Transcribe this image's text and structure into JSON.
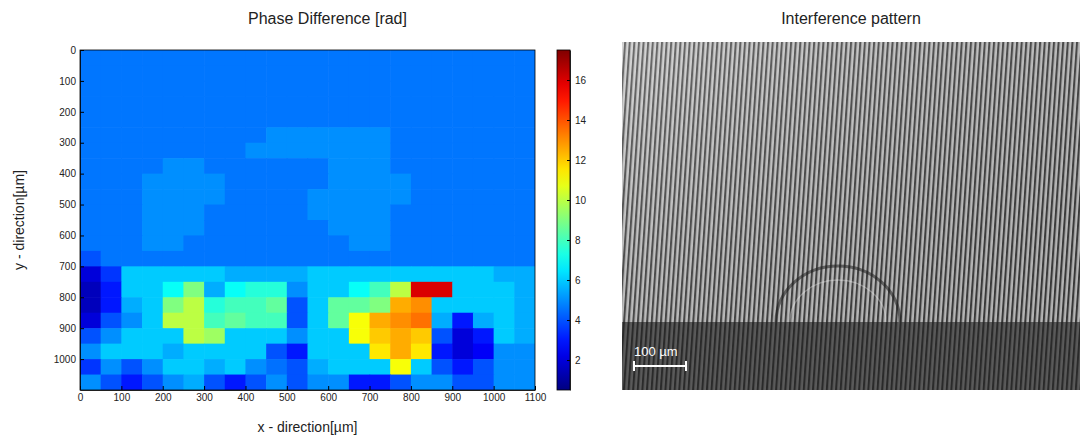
{
  "chart_data": {
    "type": "heatmap",
    "title": "Phase Difference [rad]",
    "x_label": "x - direction[µm]",
    "y_label": "y - direction[µm]",
    "x": [
      25,
      75,
      125,
      175,
      225,
      275,
      325,
      375,
      425,
      475,
      525,
      575,
      625,
      675,
      725,
      775,
      825,
      875,
      925,
      975,
      1025,
      1075
    ],
    "y": [
      25,
      75,
      125,
      175,
      225,
      275,
      325,
      375,
      425,
      475,
      525,
      575,
      625,
      675,
      725,
      775,
      825,
      875,
      925,
      975,
      1025,
      1075
    ],
    "xlim": [
      0,
      1100
    ],
    "ylim": [
      1100,
      0
    ],
    "xticks": [
      0,
      100,
      200,
      300,
      400,
      500,
      600,
      700,
      800,
      900,
      1000,
      1100
    ],
    "yticks": [
      0,
      100,
      200,
      300,
      400,
      500,
      600,
      700,
      800,
      900,
      1000
    ],
    "cells": [
      [
        4.6,
        4.6,
        4.6,
        4.6,
        4.6,
        4.6,
        4.6,
        4.6,
        4.6,
        4.6,
        4.6,
        4.6,
        4.6,
        4.6,
        4.6,
        4.6,
        4.6,
        4.6,
        4.6,
        4.6,
        4.6,
        4.6
      ],
      [
        4.6,
        4.6,
        4.6,
        4.6,
        4.6,
        4.6,
        4.6,
        4.6,
        4.6,
        4.6,
        4.6,
        4.6,
        4.6,
        4.6,
        4.6,
        4.6,
        4.6,
        4.6,
        4.6,
        4.6,
        4.6,
        4.6
      ],
      [
        4.6,
        4.6,
        4.6,
        4.6,
        4.6,
        4.6,
        4.6,
        4.6,
        4.6,
        4.6,
        4.6,
        4.6,
        4.6,
        4.6,
        4.6,
        4.6,
        4.6,
        4.6,
        4.6,
        4.6,
        4.6,
        4.6
      ],
      [
        4.6,
        4.6,
        4.6,
        4.6,
        4.6,
        4.6,
        4.6,
        4.6,
        4.6,
        4.6,
        4.6,
        4.6,
        4.6,
        4.6,
        4.6,
        4.6,
        4.6,
        4.6,
        4.6,
        4.6,
        4.6,
        4.6
      ],
      [
        4.6,
        4.6,
        4.6,
        4.6,
        4.6,
        4.6,
        4.6,
        4.6,
        4.6,
        4.6,
        4.6,
        4.6,
        4.6,
        4.6,
        4.6,
        4.6,
        4.6,
        4.6,
        4.6,
        4.6,
        4.6,
        4.6
      ],
      [
        4.6,
        4.6,
        4.6,
        4.6,
        4.6,
        4.6,
        4.6,
        4.6,
        4.6,
        5.0,
        5.0,
        5.0,
        5.0,
        5.0,
        5.0,
        4.6,
        4.6,
        4.6,
        4.6,
        4.6,
        4.6,
        4.6
      ],
      [
        4.6,
        4.6,
        4.6,
        4.6,
        4.6,
        4.6,
        4.6,
        4.6,
        5.0,
        5.0,
        5.0,
        5.0,
        5.0,
        5.0,
        5.0,
        4.6,
        4.6,
        4.6,
        4.6,
        4.6,
        4.6,
        4.6
      ],
      [
        4.6,
        4.6,
        4.6,
        4.6,
        5.0,
        5.0,
        4.6,
        4.6,
        4.6,
        4.6,
        4.6,
        4.6,
        5.0,
        5.0,
        5.0,
        4.6,
        4.6,
        4.6,
        4.6,
        4.6,
        4.6,
        4.6
      ],
      [
        4.6,
        4.6,
        4.6,
        5.0,
        5.0,
        5.0,
        5.0,
        4.6,
        4.6,
        4.6,
        4.6,
        4.6,
        5.0,
        5.0,
        5.0,
        5.0,
        4.6,
        4.6,
        4.6,
        4.6,
        4.6,
        4.6
      ],
      [
        4.6,
        4.6,
        4.6,
        5.0,
        5.0,
        5.0,
        5.0,
        4.6,
        4.6,
        4.6,
        4.6,
        5.0,
        5.0,
        5.0,
        5.0,
        5.0,
        4.6,
        4.6,
        4.6,
        4.6,
        4.6,
        4.6
      ],
      [
        4.6,
        4.6,
        4.6,
        5.0,
        5.0,
        5.0,
        4.6,
        4.6,
        4.6,
        4.6,
        4.6,
        5.0,
        5.0,
        5.0,
        5.0,
        4.6,
        4.6,
        4.6,
        4.6,
        4.6,
        4.6,
        4.6
      ],
      [
        4.6,
        4.6,
        4.6,
        5.0,
        5.0,
        5.0,
        4.6,
        4.6,
        4.6,
        4.6,
        4.6,
        4.6,
        5.0,
        5.0,
        5.0,
        4.6,
        4.6,
        4.6,
        4.6,
        4.6,
        4.6,
        4.6
      ],
      [
        4.6,
        4.6,
        4.6,
        5.0,
        5.0,
        4.6,
        4.6,
        4.6,
        4.6,
        4.6,
        4.6,
        4.6,
        4.6,
        5.0,
        5.0,
        4.6,
        4.6,
        4.6,
        4.6,
        4.6,
        4.6,
        4.6
      ],
      [
        4.0,
        4.6,
        4.6,
        4.6,
        4.6,
        4.6,
        4.6,
        4.6,
        4.6,
        4.6,
        4.6,
        4.6,
        4.6,
        4.6,
        4.6,
        4.6,
        4.6,
        4.6,
        4.6,
        4.6,
        4.6,
        4.6
      ],
      [
        2.0,
        3.5,
        6.0,
        6.0,
        6.0,
        6.0,
        6.0,
        5.5,
        5.5,
        5.5,
        5.5,
        6.0,
        6.0,
        6.0,
        6.0,
        6.0,
        6.0,
        6.0,
        6.0,
        6.0,
        5.5,
        5.5
      ],
      [
        1.5,
        3.0,
        6.0,
        6.0,
        7.0,
        9.0,
        5.5,
        7.0,
        7.5,
        7.5,
        5.0,
        6.0,
        6.0,
        7.0,
        8.0,
        10.0,
        16.0,
        16.0,
        6.0,
        6.0,
        6.0,
        5.5
      ],
      [
        1.5,
        3.0,
        5.5,
        6.0,
        9.0,
        10.0,
        7.5,
        8.0,
        8.0,
        8.5,
        4.0,
        6.0,
        8.5,
        8.5,
        9.0,
        12.5,
        13.0,
        6.0,
        6.0,
        6.0,
        6.0,
        5.5
      ],
      [
        2.0,
        4.0,
        5.0,
        6.0,
        10.0,
        10.0,
        8.0,
        8.5,
        8.0,
        8.0,
        4.0,
        6.0,
        8.5,
        11.0,
        12.5,
        13.0,
        13.5,
        5.5,
        3.0,
        5.5,
        6.0,
        5.5
      ],
      [
        4.0,
        5.0,
        6.0,
        6.0,
        6.0,
        10.0,
        9.5,
        6.0,
        6.0,
        6.0,
        5.0,
        6.0,
        6.0,
        11.0,
        12.0,
        12.5,
        12.0,
        4.0,
        2.0,
        3.0,
        6.0,
        5.5
      ],
      [
        5.0,
        6.0,
        6.0,
        6.0,
        5.5,
        6.0,
        6.0,
        6.0,
        6.0,
        4.0,
        3.0,
        6.0,
        6.0,
        6.0,
        11.5,
        12.5,
        11.5,
        3.0,
        2.0,
        2.5,
        5.0,
        5.0
      ],
      [
        3.5,
        5.0,
        4.0,
        5.0,
        6.0,
        6.0,
        5.5,
        6.0,
        5.0,
        4.5,
        4.0,
        5.5,
        6.0,
        6.0,
        6.0,
        11.0,
        6.0,
        4.0,
        3.0,
        4.0,
        5.0,
        5.0
      ],
      [
        5.0,
        4.0,
        3.0,
        4.0,
        5.0,
        5.5,
        4.0,
        3.0,
        4.0,
        5.0,
        4.0,
        5.0,
        5.0,
        3.0,
        3.0,
        4.0,
        5.0,
        5.0,
        4.0,
        4.0,
        5.0,
        5.0
      ]
    ],
    "colorbar": {
      "range": [
        0.5,
        17.5
      ],
      "ticks": [
        2,
        4,
        6,
        8,
        10,
        12,
        14,
        16
      ]
    }
  },
  "image_panel": {
    "title": "Interference pattern",
    "scale_bar": "100 µm"
  }
}
